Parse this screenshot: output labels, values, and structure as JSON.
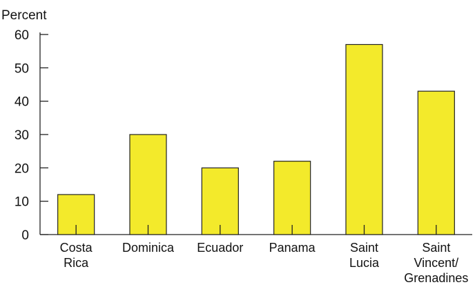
{
  "chart_data": {
    "type": "bar",
    "ylabel": "Percent",
    "xlabel": "",
    "title": "",
    "categories": [
      [
        "Costa",
        "Rica"
      ],
      [
        "Dominica"
      ],
      [
        "Ecuador"
      ],
      [
        "Panama"
      ],
      [
        "Saint",
        "Lucia"
      ],
      [
        "Saint",
        "Vincent/",
        "Grenadines"
      ]
    ],
    "values": [
      12,
      30,
      20,
      22,
      57,
      43
    ],
    "ylim": [
      0,
      60
    ],
    "yticks": [
      0,
      10,
      20,
      30,
      40,
      50,
      60
    ],
    "grid": false,
    "bar_color": "#f3ea2b",
    "bar_edge_color": "#222222"
  }
}
